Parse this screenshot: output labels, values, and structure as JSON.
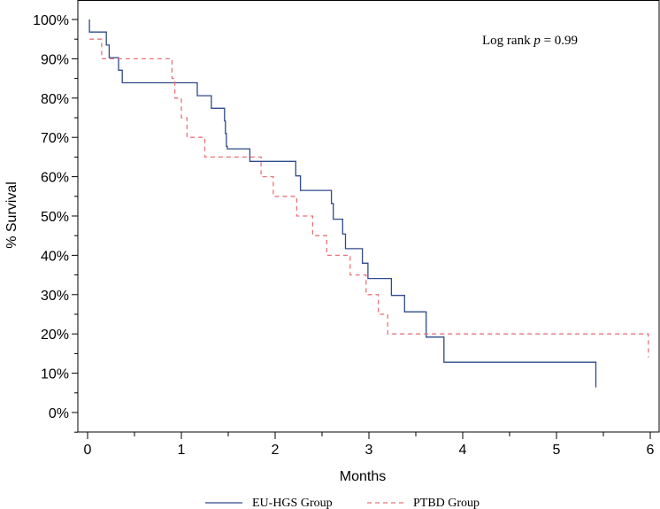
{
  "chart_data": {
    "type": "line",
    "xlabel": "Months",
    "ylabel": "% Survival",
    "xlim": [
      0,
      6
    ],
    "ylim": [
      0,
      100
    ],
    "x_ticks": [
      "0",
      "1",
      "2",
      "3",
      "4",
      "5",
      "6"
    ],
    "y_ticks": [
      "0%",
      "10%",
      "20%",
      "30%",
      "40%",
      "50%",
      "60%",
      "70%",
      "80%",
      "90%",
      "100%"
    ],
    "grid": false,
    "legend_position": "bottom",
    "annotation": {
      "prefix": "Log rank ",
      "italic": "p",
      "suffix": " = 0.99"
    },
    "series": [
      {
        "name": "EU-HGS Group",
        "color": "#2e4a8a",
        "style": "solid",
        "points": [
          [
            0.02,
            100
          ],
          [
            0.02,
            96.8
          ],
          [
            0.2,
            96.8
          ],
          [
            0.2,
            93.5
          ],
          [
            0.23,
            93.5
          ],
          [
            0.23,
            90.3
          ],
          [
            0.33,
            90.3
          ],
          [
            0.33,
            87.1
          ],
          [
            0.37,
            87.1
          ],
          [
            0.37,
            83.9
          ],
          [
            1.17,
            83.9
          ],
          [
            1.17,
            80.6
          ],
          [
            1.32,
            80.6
          ],
          [
            1.32,
            77.4
          ],
          [
            1.46,
            77.4
          ],
          [
            1.46,
            74.2
          ],
          [
            1.47,
            74.2
          ],
          [
            1.47,
            71.0
          ],
          [
            1.48,
            71.0
          ],
          [
            1.48,
            67.7
          ],
          [
            1.49,
            67.7
          ],
          [
            1.49,
            67.1
          ],
          [
            1.73,
            67.1
          ],
          [
            1.73,
            63.9
          ],
          [
            2.22,
            63.9
          ],
          [
            2.22,
            60.2
          ],
          [
            2.27,
            60.2
          ],
          [
            2.27,
            56.5
          ],
          [
            2.6,
            56.5
          ],
          [
            2.6,
            53.2
          ],
          [
            2.62,
            53.2
          ],
          [
            2.62,
            49.2
          ],
          [
            2.72,
            49.2
          ],
          [
            2.72,
            45.4
          ],
          [
            2.75,
            45.4
          ],
          [
            2.75,
            41.7
          ],
          [
            2.93,
            41.7
          ],
          [
            2.93,
            38.0
          ],
          [
            2.99,
            38.0
          ],
          [
            2.99,
            34.1
          ],
          [
            3.24,
            34.1
          ],
          [
            3.24,
            29.8
          ],
          [
            3.38,
            29.8
          ],
          [
            3.38,
            25.6
          ],
          [
            3.61,
            25.6
          ],
          [
            3.61,
            19.2
          ],
          [
            3.8,
            19.2
          ],
          [
            3.8,
            12.8
          ],
          [
            5.42,
            12.8
          ],
          [
            5.42,
            6.4
          ]
        ]
      },
      {
        "name": "PTBD Group",
        "color": "#e8737a",
        "style": "dashed",
        "points": [
          [
            0.02,
            95
          ],
          [
            0.15,
            95
          ],
          [
            0.15,
            90
          ],
          [
            0.9,
            90
          ],
          [
            0.9,
            85
          ],
          [
            0.93,
            85
          ],
          [
            0.93,
            80
          ],
          [
            1.0,
            80
          ],
          [
            1.0,
            75
          ],
          [
            1.06,
            75
          ],
          [
            1.06,
            70
          ],
          [
            1.25,
            70
          ],
          [
            1.25,
            65
          ],
          [
            1.85,
            65
          ],
          [
            1.85,
            60
          ],
          [
            1.98,
            60
          ],
          [
            1.98,
            55
          ],
          [
            2.23,
            55
          ],
          [
            2.23,
            50
          ],
          [
            2.4,
            50
          ],
          [
            2.4,
            45
          ],
          [
            2.55,
            45
          ],
          [
            2.55,
            40
          ],
          [
            2.8,
            40
          ],
          [
            2.8,
            35
          ],
          [
            2.97,
            35
          ],
          [
            2.97,
            30
          ],
          [
            3.1,
            30
          ],
          [
            3.1,
            25
          ],
          [
            3.2,
            25
          ],
          [
            3.2,
            20
          ],
          [
            5.98,
            20
          ],
          [
            5.98,
            14
          ]
        ]
      }
    ]
  }
}
